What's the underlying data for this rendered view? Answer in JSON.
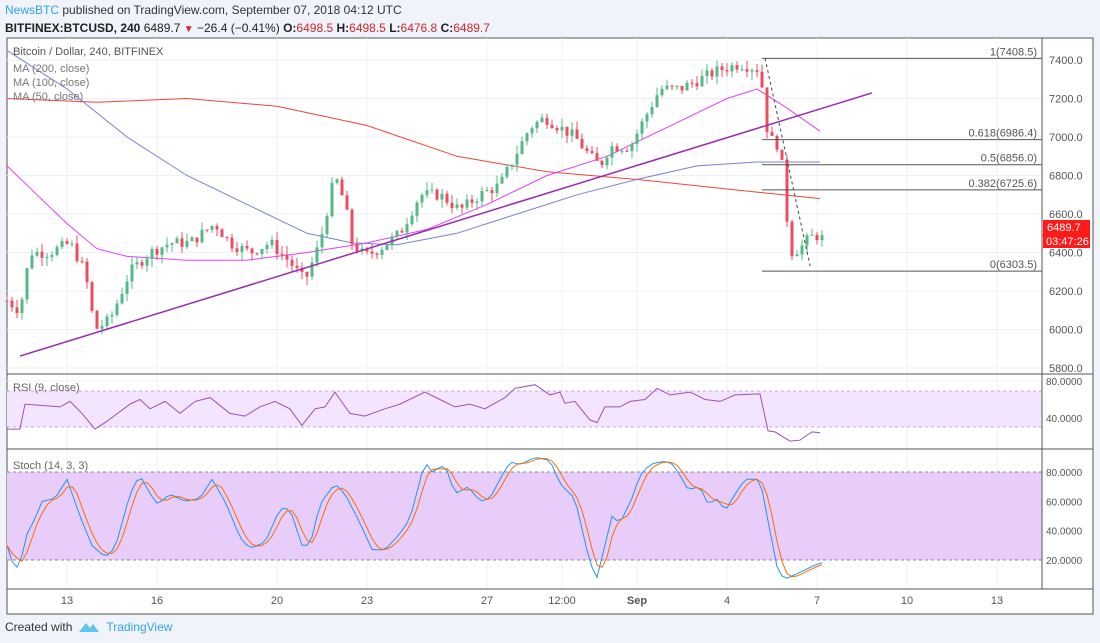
{
  "header": {
    "publisher": "NewsBTC",
    "published_text": "published on TradingView.com, September 07, 2018 04:12 UTC",
    "symbol": "BITFINEX:BTCUSD, 240",
    "last": "6489.7",
    "change": "−26.4 (−0.41%)",
    "o_label": "O:",
    "o": "6498.5",
    "h_label": "H:",
    "h": "6498.5",
    "l_label": "L:",
    "l": "6476.8",
    "c_label": "C:",
    "c": "6489.7"
  },
  "legend": {
    "title": "Bitcoin / Dollar, 240, BITFINEX",
    "ma200": "MA (200, close)",
    "ma100": "MA (100, close)",
    "ma50": "MA (50, close)",
    "rsi": "RSI (9, close)",
    "stoch": "Stoch (14, 3, 3)"
  },
  "footer": {
    "created_with": "Created with",
    "brand": "TradingView"
  },
  "colors": {
    "up": "#53b987",
    "down": "#eb4d5c",
    "ma200": "#f44336",
    "ma100": "#7b7fd4",
    "ma50": "#e040fb",
    "trend": "#9c27b0",
    "rsi": "#9c4fc5",
    "stoch_k": "#2196f3",
    "stoch_d": "#ff6d00",
    "price_tag": "#ff1a1a"
  },
  "chart_data": {
    "type": "candlestick",
    "time_unit": "days since Aug 11 2018 00:00 UTC (4H bars)",
    "price_ylim": [
      5780,
      7500
    ],
    "price_ticks": [
      "7400.0",
      "7200.0",
      "7000.0",
      "6800.0",
      "6600.0",
      "6400.0",
      "6200.0",
      "6000.0",
      "5800.0"
    ],
    "x_ticks": [
      {
        "t": 2,
        "label": "13"
      },
      {
        "t": 5,
        "label": "16"
      },
      {
        "t": 9,
        "label": "20"
      },
      {
        "t": 12,
        "label": "23"
      },
      {
        "t": 16,
        "label": "27"
      },
      {
        "t": 18.5,
        "label": "12:00"
      },
      {
        "t": 21,
        "label": "Sep"
      },
      {
        "t": 24,
        "label": "4"
      },
      {
        "t": 27,
        "label": "7"
      },
      {
        "t": 30,
        "label": "10"
      },
      {
        "t": 33,
        "label": "13"
      }
    ],
    "close_keypoints": [
      [
        0,
        6150
      ],
      [
        0.43,
        6100
      ],
      [
        0.77,
        6400
      ],
      [
        1.43,
        6400
      ],
      [
        2.1,
        6450
      ],
      [
        2.6,
        6300
      ],
      [
        2.93,
        6000
      ],
      [
        3.43,
        6050
      ],
      [
        4.1,
        6300
      ],
      [
        4.77,
        6400
      ],
      [
        5.43,
        6450
      ],
      [
        6.1,
        6450
      ],
      [
        6.93,
        6550
      ],
      [
        7.43,
        6450
      ],
      [
        8.1,
        6400
      ],
      [
        8.77,
        6450
      ],
      [
        9.43,
        6350
      ],
      [
        9.93,
        6250
      ],
      [
        10.43,
        6450
      ],
      [
        10.93,
        6800
      ],
      [
        11.27,
        6650
      ],
      [
        11.5,
        6450
      ],
      [
        11.93,
        6380
      ],
      [
        12.43,
        6420
      ],
      [
        13.1,
        6500
      ],
      [
        13.77,
        6700
      ],
      [
        14.43,
        6700
      ],
      [
        15.1,
        6620
      ],
      [
        15.77,
        6700
      ],
      [
        16.43,
        6750
      ],
      [
        16.93,
        6900
      ],
      [
        17.43,
        7050
      ],
      [
        17.93,
        7100
      ],
      [
        18.43,
        7050
      ],
      [
        18.93,
        7000
      ],
      [
        19.43,
        6900
      ],
      [
        19.77,
        6850
      ],
      [
        20.1,
        6950
      ],
      [
        20.77,
        6950
      ],
      [
        21.43,
        7150
      ],
      [
        21.77,
        7250
      ],
      [
        22.43,
        7250
      ],
      [
        23.1,
        7300
      ],
      [
        23.77,
        7350
      ],
      [
        24.43,
        7380
      ],
      [
        25.1,
        7350
      ],
      [
        25.37,
        7000
      ],
      [
        25.77,
        6950
      ],
      [
        25.93,
        6700
      ],
      [
        26.1,
        6400
      ],
      [
        26.43,
        6420
      ],
      [
        26.77,
        6480
      ],
      [
        27.1,
        6489.7
      ]
    ],
    "ma200": [
      [
        0,
        7200
      ],
      [
        3,
        7180
      ],
      [
        6,
        7200
      ],
      [
        9,
        7160
      ],
      [
        12,
        7060
      ],
      [
        15,
        6900
      ],
      [
        18,
        6820
      ],
      [
        21,
        6780
      ],
      [
        24,
        6730
      ],
      [
        27.1,
        6680
      ]
    ],
    "ma100": [
      [
        0,
        7450
      ],
      [
        2,
        7250
      ],
      [
        4,
        7000
      ],
      [
        6,
        6800
      ],
      [
        8,
        6650
      ],
      [
        10,
        6500
      ],
      [
        11.5,
        6450
      ],
      [
        13,
        6440
      ],
      [
        15,
        6500
      ],
      [
        17,
        6600
      ],
      [
        19,
        6700
      ],
      [
        21,
        6780
      ],
      [
        23,
        6850
      ],
      [
        25,
        6870
      ],
      [
        27.1,
        6870
      ]
    ],
    "ma50": [
      [
        0,
        6850
      ],
      [
        1,
        6700
      ],
      [
        2,
        6550
      ],
      [
        3,
        6420
      ],
      [
        4,
        6380
      ],
      [
        6,
        6360
      ],
      [
        8,
        6360
      ],
      [
        10,
        6400
      ],
      [
        12,
        6450
      ],
      [
        14,
        6520
      ],
      [
        16,
        6650
      ],
      [
        18,
        6800
      ],
      [
        20,
        6900
      ],
      [
        22,
        7050
      ],
      [
        24,
        7200
      ],
      [
        25,
        7250
      ],
      [
        26,
        7150
      ],
      [
        27.1,
        7030
      ]
    ],
    "trendline": [
      [
        0.43,
        5862
      ],
      [
        28.83,
        7229
      ]
    ],
    "fib_start_t": 25.17,
    "fib_levels": [
      {
        "label": "1(7408.5)",
        "price": 7408.5
      },
      {
        "label": "0.618(6986.4)",
        "price": 6986.4
      },
      {
        "label": "0.5(6856.0)",
        "price": 6856.0
      },
      {
        "label": "0.382(6725.6)",
        "price": 6725.6
      },
      {
        "label": "0(6303.5)",
        "price": 6303.5
      }
    ],
    "fib_diagonal": [
      [
        25.27,
        7408.5
      ],
      [
        26.77,
        6330
      ]
    ],
    "last_price_tag": "6489.7",
    "countdown_tag": "03:47:26",
    "rsi": {
      "ylim": [
        0,
        100
      ],
      "band": [
        30,
        70
      ],
      "ticks": [
        "80.0000",
        "40.0000"
      ],
      "values": [
        [
          0,
          28
        ],
        [
          0.43,
          28
        ],
        [
          0.6,
          55
        ],
        [
          1.77,
          52
        ],
        [
          2.1,
          58
        ],
        [
          2.5,
          45
        ],
        [
          2.93,
          28
        ],
        [
          3.27,
          35
        ],
        [
          4.1,
          55
        ],
        [
          4.43,
          60
        ],
        [
          4.77,
          50
        ],
        [
          5.27,
          58
        ],
        [
          5.77,
          45
        ],
        [
          6.27,
          58
        ],
        [
          6.77,
          62
        ],
        [
          7.43,
          45
        ],
        [
          7.93,
          42
        ],
        [
          8.43,
          52
        ],
        [
          8.93,
          58
        ],
        [
          9.43,
          50
        ],
        [
          9.83,
          32
        ],
        [
          10.27,
          50
        ],
        [
          10.6,
          52
        ],
        [
          10.93,
          68
        ],
        [
          11.43,
          45
        ],
        [
          11.93,
          42
        ],
        [
          12.6,
          50
        ],
        [
          13.1,
          55
        ],
        [
          13.93,
          68
        ],
        [
          14.43,
          60
        ],
        [
          14.93,
          52
        ],
        [
          15.43,
          55
        ],
        [
          15.93,
          50
        ],
        [
          16.6,
          62
        ],
        [
          16.93,
          72
        ],
        [
          17.6,
          76
        ],
        [
          18.1,
          65
        ],
        [
          18.43,
          68
        ],
        [
          18.6,
          56
        ],
        [
          18.93,
          58
        ],
        [
          19.43,
          38
        ],
        [
          19.67,
          35
        ],
        [
          19.93,
          52
        ],
        [
          20.43,
          52
        ],
        [
          20.77,
          58
        ],
        [
          21.27,
          60
        ],
        [
          21.67,
          72
        ],
        [
          22.1,
          65
        ],
        [
          22.77,
          68
        ],
        [
          23.27,
          60
        ],
        [
          23.77,
          58
        ],
        [
          24.27,
          65
        ],
        [
          25.1,
          66
        ],
        [
          25.37,
          26
        ],
        [
          25.6,
          25
        ],
        [
          26.1,
          15
        ],
        [
          26.43,
          16
        ],
        [
          26.83,
          25
        ],
        [
          27.1,
          24
        ]
      ]
    },
    "stoch": {
      "ylim": [
        0,
        95
      ],
      "band": [
        20,
        80
      ],
      "ticks": [
        "80.0000",
        "60.0000",
        "40.0000",
        "20.0000"
      ],
      "k": [
        [
          0,
          30
        ],
        [
          0.23,
          15
        ],
        [
          0.43,
          15
        ],
        [
          0.6,
          35
        ],
        [
          0.93,
          48
        ],
        [
          1.17,
          60
        ],
        [
          1.6,
          62
        ],
        [
          2,
          75
        ],
        [
          2.43,
          50
        ],
        [
          2.83,
          30
        ],
        [
          3.27,
          22
        ],
        [
          3.6,
          28
        ],
        [
          4.1,
          65
        ],
        [
          4.43,
          78
        ],
        [
          4.77,
          65
        ],
        [
          5.03,
          58
        ],
        [
          5.43,
          65
        ],
        [
          5.93,
          60
        ],
        [
          6.43,
          62
        ],
        [
          6.83,
          75
        ],
        [
          7.27,
          60
        ],
        [
          7.77,
          35
        ],
        [
          8.1,
          28
        ],
        [
          8.6,
          32
        ],
        [
          9.1,
          55
        ],
        [
          9.43,
          55
        ],
        [
          9.83,
          30
        ],
        [
          10.1,
          30
        ],
        [
          10.43,
          58
        ],
        [
          10.93,
          72
        ],
        [
          11.27,
          65
        ],
        [
          11.77,
          45
        ],
        [
          12.17,
          27
        ],
        [
          12.6,
          27
        ],
        [
          13.1,
          38
        ],
        [
          13.43,
          48
        ],
        [
          13.93,
          87
        ],
        [
          14.17,
          80
        ],
        [
          14.6,
          85
        ],
        [
          14.93,
          65
        ],
        [
          15.37,
          70
        ],
        [
          15.77,
          60
        ],
        [
          16.1,
          62
        ],
        [
          16.43,
          75
        ],
        [
          16.77,
          87
        ],
        [
          17.1,
          85
        ],
        [
          17.6,
          90
        ],
        [
          18.1,
          88
        ],
        [
          18.43,
          72
        ],
        [
          18.93,
          62
        ],
        [
          19.43,
          18
        ],
        [
          19.67,
          8
        ],
        [
          19.93,
          30
        ],
        [
          20.17,
          50
        ],
        [
          20.43,
          45
        ],
        [
          20.83,
          62
        ],
        [
          21.1,
          78
        ],
        [
          21.43,
          85
        ],
        [
          21.77,
          87
        ],
        [
          22.1,
          87
        ],
        [
          22.37,
          80
        ],
        [
          22.7,
          68
        ],
        [
          23.1,
          70
        ],
        [
          23.37,
          58
        ],
        [
          23.7,
          62
        ],
        [
          23.93,
          53
        ],
        [
          24.27,
          65
        ],
        [
          24.6,
          75
        ],
        [
          25.1,
          75
        ],
        [
          25.43,
          40
        ],
        [
          25.7,
          12
        ],
        [
          25.93,
          7
        ],
        [
          26.27,
          10
        ],
        [
          26.77,
          15
        ],
        [
          27.1,
          18
        ]
      ]
    }
  }
}
